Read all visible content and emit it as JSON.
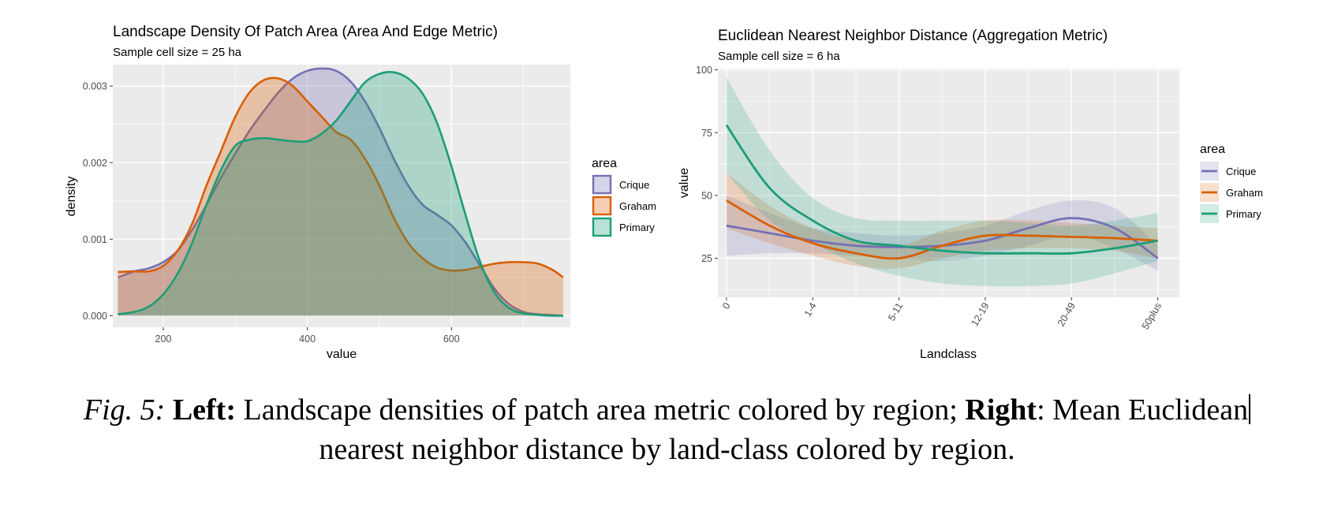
{
  "chart_data": [
    {
      "type": "area",
      "title": "Landscape Density Of Patch Area (Area And Edge Metric)",
      "subtitle": "Sample cell size = 25 ha",
      "xlabel": "value",
      "ylabel": "density",
      "xlim": [
        130,
        765
      ],
      "ylim": [
        -0.00015,
        0.00328
      ],
      "xticks": [
        200,
        400,
        600
      ],
      "yticks": [
        0.0,
        0.001,
        0.002,
        0.003
      ],
      "ytick_labels": [
        "0.000",
        "0.001",
        "0.002",
        "0.003"
      ],
      "grid": true,
      "legend_title": "area",
      "legend_position": "right",
      "x": [
        137,
        160,
        180,
        200,
        220,
        240,
        260,
        280,
        300,
        320,
        340,
        360,
        380,
        400,
        420,
        440,
        460,
        480,
        500,
        520,
        540,
        560,
        580,
        600,
        620,
        640,
        660,
        680,
        700,
        720,
        740,
        755
      ],
      "series": [
        {
          "name": "Crique",
          "values": [
            0.0005,
            0.00058,
            0.00062,
            0.0007,
            0.00085,
            0.00112,
            0.00145,
            0.0018,
            0.00212,
            0.00242,
            0.00268,
            0.00292,
            0.0031,
            0.0032,
            0.00323,
            0.0032,
            0.00306,
            0.0028,
            0.00245,
            0.00205,
            0.0017,
            0.00145,
            0.00132,
            0.00118,
            0.00095,
            0.00065,
            0.00035,
            0.00015,
            5e-05,
            2e-05,
            1e-05,
            0.0
          ]
        },
        {
          "name": "Graham",
          "values": [
            0.00057,
            0.00058,
            0.00058,
            0.00065,
            0.00085,
            0.0012,
            0.0017,
            0.00215,
            0.0026,
            0.00292,
            0.00308,
            0.0031,
            0.003,
            0.0028,
            0.0026,
            0.0024,
            0.0023,
            0.00205,
            0.0017,
            0.00128,
            0.00095,
            0.00075,
            0.00063,
            0.00059,
            0.0006,
            0.00064,
            0.00068,
            0.0007,
            0.0007,
            0.00068,
            0.0006,
            0.0005
          ]
        },
        {
          "name": "Primary",
          "values": [
            2e-05,
            5e-05,
            0.00012,
            0.00028,
            0.00055,
            0.00095,
            0.00145,
            0.0019,
            0.00222,
            0.0023,
            0.00232,
            0.0023,
            0.00228,
            0.00228,
            0.00238,
            0.00255,
            0.0028,
            0.00305,
            0.00316,
            0.00318,
            0.0031,
            0.0029,
            0.00252,
            0.00195,
            0.0013,
            0.0007,
            0.0003,
            0.0001,
            3e-05,
            1e-05,
            0.0,
            0.0
          ]
        }
      ]
    },
    {
      "type": "line",
      "title": "Euclidean Nearest Neighbor Distance (Aggregation Metric)",
      "subtitle": "Sample cell size = 6 ha",
      "xlabel": "Landclass",
      "ylabel": "value",
      "categories": [
        "0",
        "1-4",
        "5-11",
        "12-19",
        "20-49",
        "50plus"
      ],
      "xlim": [
        -0.1,
        5.25
      ],
      "ylim": [
        9.5,
        100.5
      ],
      "yticks": [
        25,
        50,
        75,
        100
      ],
      "grid": true,
      "legend_title": "area",
      "legend_position": "right",
      "x": [
        0,
        0.5,
        1,
        1.5,
        2,
        2.5,
        3,
        3.5,
        4,
        4.5,
        5
      ],
      "series": [
        {
          "name": "Crique",
          "values": [
            38,
            35,
            32,
            30,
            29.5,
            30,
            32,
            37,
            41,
            37,
            25
          ],
          "lower": [
            26,
            27,
            27,
            26,
            25,
            24,
            26,
            30,
            34,
            29,
            20
          ],
          "upper": [
            50,
            43,
            37,
            35,
            34,
            35,
            38,
            44,
            48,
            45,
            30
          ]
        },
        {
          "name": "Graham",
          "values": [
            48,
            38,
            31,
            27,
            25,
            30,
            34,
            34,
            33.5,
            33,
            32
          ],
          "lower": [
            37,
            31,
            26,
            22,
            21,
            25,
            28,
            29,
            29,
            28,
            25
          ],
          "upper": [
            59,
            46,
            37,
            32,
            30,
            36,
            40,
            40,
            39,
            38,
            37
          ]
        },
        {
          "name": "Primary",
          "values": [
            78,
            53,
            40,
            32,
            30,
            28,
            27,
            27,
            27,
            29,
            32
          ],
          "lower": [
            59,
            40,
            31,
            23,
            18,
            15,
            14,
            14,
            15,
            19,
            24
          ],
          "upper": [
            97,
            68,
            49,
            41,
            40,
            40,
            40,
            39,
            38,
            40,
            43
          ]
        }
      ]
    }
  ],
  "colors": {
    "Crique": "#7570b3",
    "Graham": "#d95f02",
    "Primary": "#1b9e77",
    "panel": "#ebebeb",
    "grid": "#ffffff",
    "tick_text": "#4d4d4d"
  },
  "caption": {
    "fig_label": "Fig. 5:",
    "left_label": "Left:",
    "left_text": " Landscape densities of patch area metric colored by region; ",
    "right_label": "Right",
    "right_text": ": Mean Euclidean",
    "line2": "nearest neighbor distance by land-class colored by region."
  }
}
